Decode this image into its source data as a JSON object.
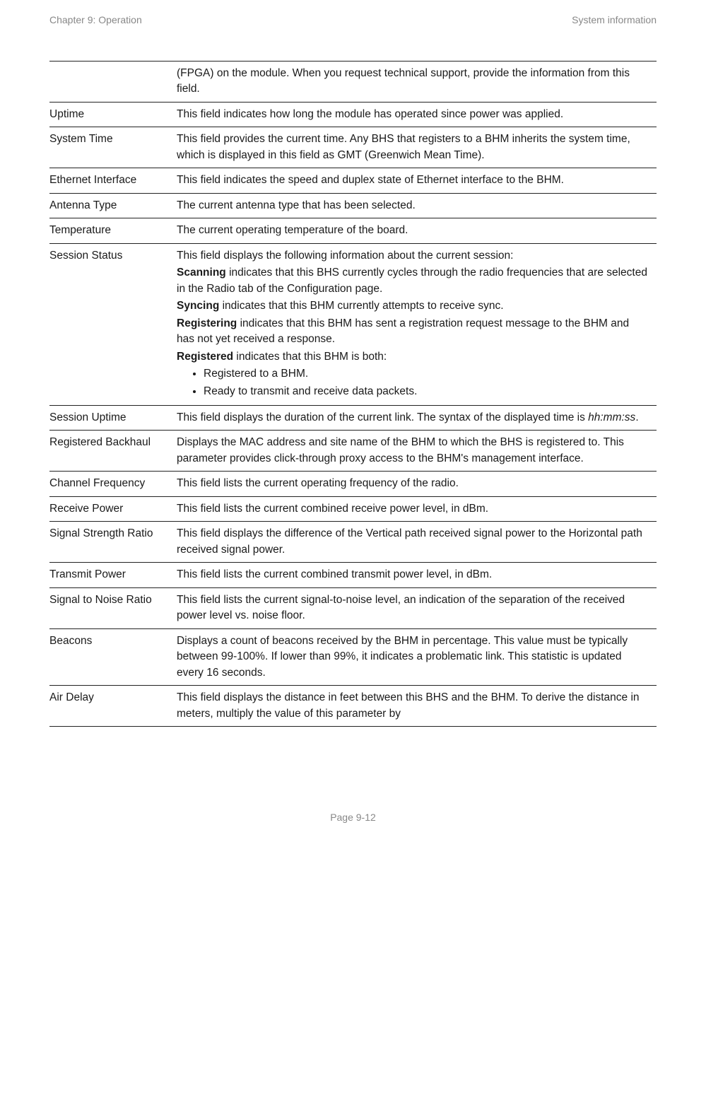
{
  "header": {
    "left": "Chapter 9:  Operation",
    "right": "System information"
  },
  "footer": {
    "page": "Page 9-12"
  },
  "rows": [
    {
      "term": "",
      "desc_html": "(FPGA) on the module. When you request technical support, provide the information from this field."
    },
    {
      "term": "Uptime",
      "desc_html": "This field indicates how long the module has operated since power was applied."
    },
    {
      "term": "System Time",
      "desc_html": "This field provides the current time. Any BHS that registers to a BHM inherits the system time, which is displayed in this field as GMT (Greenwich Mean Time)."
    },
    {
      "term": "Ethernet Interface",
      "desc_html": "This field indicates the speed and duplex state of Ethernet interface to the BHM."
    },
    {
      "term": "Antenna Type",
      "desc_html": "The current antenna type that has been selected."
    },
    {
      "term": "Temperature",
      "desc_html": "The current operating temperature of the board."
    },
    {
      "term": "Session Status",
      "desc_html": "<p>This field displays the following information about the current session:</p><p><b>Scanning</b> indicates that this BHS currently cycles through the radio frequencies that are selected in the Radio tab of the Configuration page.</p><p><b>Syncing</b> indicates that this BHM currently attempts to receive sync.</p><p><b>Registering</b> indicates that this BHM has sent a registration request message to the BHM and has not yet received a response.</p><p><b>Registered</b> indicates that this BHM is both:</p><ul class=\"bullets\"><li>Registered to a BHM.</li><li>Ready to transmit and receive data packets.</li></ul>"
    },
    {
      "term": "Session Uptime",
      "desc_html": "This field displays the duration of the current link. The syntax of the displayed time is <em>hh:mm:ss</em>."
    },
    {
      "term": "Registered Backhaul",
      "desc_html": "Displays the MAC address and site name of the BHM to which the BHS is registered to. This parameter provides click-through proxy access to the BHM's management interface."
    },
    {
      "term": "Channel Frequency",
      "desc_html": "This field lists the current operating frequency of the radio."
    },
    {
      "term": "Receive Power",
      "desc_html": "This field lists the current combined receive power level, in dBm."
    },
    {
      "term": "Signal Strength Ratio",
      "desc_html": "This field displays the difference of the Vertical path received signal power to the Horizontal path received signal power."
    },
    {
      "term": "Transmit Power",
      "desc_html": "This field lists the current combined transmit power level, in dBm."
    },
    {
      "term": "Signal to Noise Ratio",
      "desc_html": "This field lists the current signal-to-noise level, an indication of the separation of the received power level vs. noise floor."
    },
    {
      "term": "Beacons",
      "desc_html": "Displays a count of beacons received by the BHM in percentage. This value must be typically between 99-100%. If lower than 99%, it indicates a problematic link. This statistic is updated every 16 seconds."
    },
    {
      "term": "Air Delay",
      "desc_html": "This field displays the distance in feet between this BHS and the BHM. To derive the distance in meters, multiply the value of this parameter by"
    }
  ]
}
